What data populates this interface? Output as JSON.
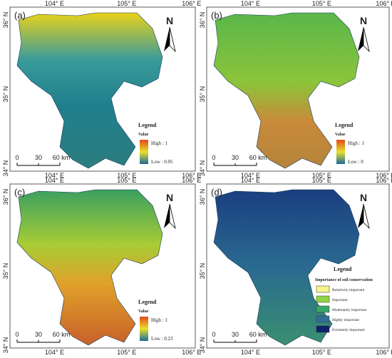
{
  "panels": [
    {
      "label": "(a)",
      "x_ticks_top": [
        "104° E",
        "105° E",
        "106° E"
      ],
      "x_ticks_bottom": [
        "104° E",
        "105° E",
        "106° E"
      ],
      "y_ticks": [
        "36° N",
        "35° N",
        "34° N"
      ],
      "north": "N",
      "scale": [
        "0",
        "30",
        "60 km"
      ],
      "legend": {
        "title": "Legend",
        "subtitle": "Value",
        "high": "High : 1",
        "low": "Low : 0.05"
      }
    },
    {
      "label": "(b)",
      "x_ticks_top": [
        "104° E",
        "105° E",
        "106° E"
      ],
      "x_ticks_bottom": [
        "104° E",
        "105° E",
        "106° E"
      ],
      "y_ticks": [
        "36° N",
        "35° N",
        "34° N"
      ],
      "north": "N",
      "scale": [
        "0",
        "30",
        "60 km"
      ],
      "legend": {
        "title": "Legend",
        "subtitle": "Value",
        "high": "High : 1",
        "low": "Low : 0"
      }
    },
    {
      "label": "(c)",
      "x_ticks_top": [
        "104° E",
        "105° E",
        "106° E"
      ],
      "x_ticks_bottom": [
        "104° E",
        "105° E",
        "106° E"
      ],
      "y_ticks": [
        "36° N",
        "35° N",
        "34° N"
      ],
      "north": "N",
      "scale": [
        "0",
        "30",
        "60 km"
      ],
      "legend": {
        "title": "Legend",
        "subtitle": "Value",
        "high": "High : 1",
        "low": "Low : 0.23"
      }
    },
    {
      "label": "(d)",
      "x_ticks_top": [
        "104° E",
        "105° E",
        "106° E"
      ],
      "x_ticks_bottom": [
        "104° E",
        "105° E",
        "106° E"
      ],
      "y_ticks": [
        "36° N",
        "35° N",
        "34° N"
      ],
      "north": "N",
      "scale": [
        "0",
        "30",
        "60 km"
      ],
      "legend": {
        "title": "Legend",
        "subtitle": "Importance of soil conservation",
        "items": [
          {
            "label": "Relatively important",
            "color": "#f5f58c"
          },
          {
            "label": "Important",
            "color": "#8fd444"
          },
          {
            "label": "Moderately important",
            "color": "#3aa86a"
          },
          {
            "label": "Highly important",
            "color": "#2f6f97"
          },
          {
            "label": "Extremely important",
            "color": "#10206e"
          }
        ]
      }
    }
  ]
}
